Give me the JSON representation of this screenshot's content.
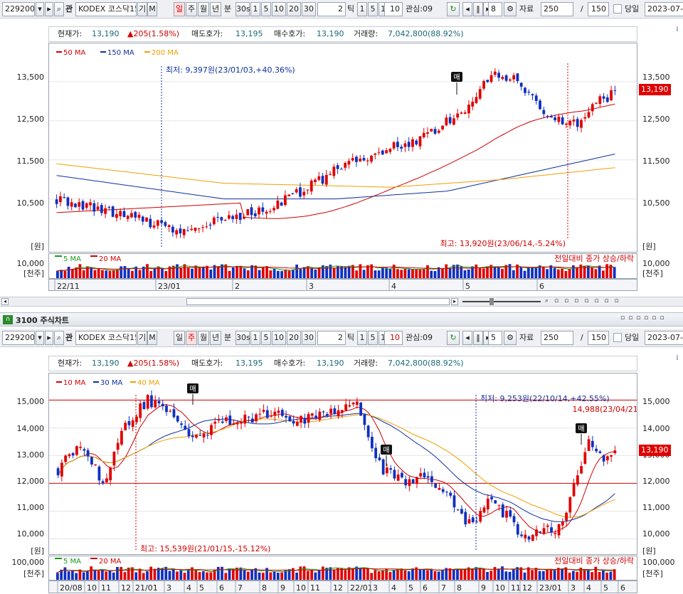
{
  "chart1": {
    "toolbar": {
      "code": "229200",
      "name": "KODEX 코스닥15",
      "mode_a": "기",
      "mode_b": "M",
      "periods": [
        "일",
        "주",
        "월",
        "년",
        "분"
      ],
      "active_period": "일",
      "ticks": [
        "30s",
        "1",
        "5",
        "10",
        "20",
        "30"
      ],
      "tick_count": "2",
      "tick_label": "틱",
      "nums": [
        "1",
        "5",
        "10"
      ],
      "input_val": "10",
      "watch_label": "관심:09",
      "step_val": "8",
      "data_label": "자료",
      "data_count": "250",
      "slash": "/",
      "data_total": "150",
      "today_label": "당일",
      "date": "2023-07-0"
    },
    "pricebar": {
      "current_label": "현재가:",
      "current": "13,190",
      "change": "▲205(1.58%)",
      "ask_label": "매도호가:",
      "ask": "13,195",
      "bid_label": "매수호가:",
      "bid": "13,190",
      "volume_label": "거래량:",
      "volume": "7,042,800(88.92%)"
    },
    "legend": [
      "50 MA",
      "150 MA",
      "200 MA"
    ],
    "colors": {
      "ma1": "#d00000",
      "ma2": "#1030a0",
      "ma3": "#f0a000",
      "up": "#e00000",
      "down": "#1030c0"
    },
    "y_ticks": [
      "13,500",
      "12,500",
      "11,500",
      "10,500"
    ],
    "y_unit": "[원]",
    "min_annotation": "최저: 9,397원(23/01/03,+40.36%)",
    "max_annotation": "최고: 13,920원(23/06/14,-5.24%)",
    "signal": "매",
    "last_price": "13,190",
    "vol_legend": [
      "5 MA",
      "20 MA"
    ],
    "vol_note": "전일대비 종가 상승/하락",
    "vol_tick": "10,000",
    "vol_unit": "[천주]",
    "x_ticks": [
      "22/11",
      "23/01",
      "2",
      "3",
      "4",
      "5",
      "6"
    ]
  },
  "chart2": {
    "title": "3100 주식차트",
    "toolbar": {
      "code": "229200",
      "name": "KODEX 코스닥15",
      "mode_a": "기",
      "mode_b": "M",
      "periods": [
        "일",
        "주",
        "월",
        "년",
        "분"
      ],
      "active_period": "주",
      "ticks": [
        "30s",
        "1",
        "5",
        "10",
        "20",
        "30"
      ],
      "tick_count": "2",
      "tick_label": "틱",
      "nums": [
        "1",
        "5",
        "10"
      ],
      "input_val": "10",
      "watch_label": "관심:09",
      "step_val": "5",
      "data_label": "자료",
      "data_count": "250",
      "slash": "/",
      "data_total": "150",
      "today_label": "당일",
      "date": "2023-07-"
    },
    "pricebar": {
      "current_label": "현재가:",
      "current": "13,190",
      "change": "▲205(1.58%)",
      "ask_label": "매도호가:",
      "ask": "13,195",
      "bid_label": "매수호가:",
      "bid": "13,190",
      "volume_label": "거래량:",
      "volume": "7,042,800(88.92%)"
    },
    "legend": [
      "10 MA",
      "30 MA",
      "40 MA"
    ],
    "y_ticks": [
      "15,000",
      "14,000",
      "13,000",
      "12,000",
      "11,000",
      "10,000"
    ],
    "y_unit": "[원]",
    "min_annotation": "최저: 9,253원(22/10/14,+42.55%)",
    "max_annotation": "최고: 15,539원(21/01/15,-15.12%)",
    "ref_annotation": "14,988(23/04/21)",
    "signal": "매",
    "last_price": "13,190",
    "vol_legend": [
      "5 MA",
      "20 MA"
    ],
    "vol_note": "전일대비 종가 상승/하락",
    "vol_tick": "100,000",
    "vol_unit": "[천주]",
    "x_ticks": [
      "20/08",
      "10",
      "11",
      "12",
      "21/01",
      "3",
      "4",
      "5",
      "6",
      "7",
      "8",
      "9",
      "10",
      "11",
      "12",
      "22/01",
      "3",
      "4",
      "5",
      "6",
      "7",
      "8",
      "9",
      "10",
      "11",
      "12",
      "23/01",
      "3",
      "4",
      "5",
      "6"
    ]
  }
}
